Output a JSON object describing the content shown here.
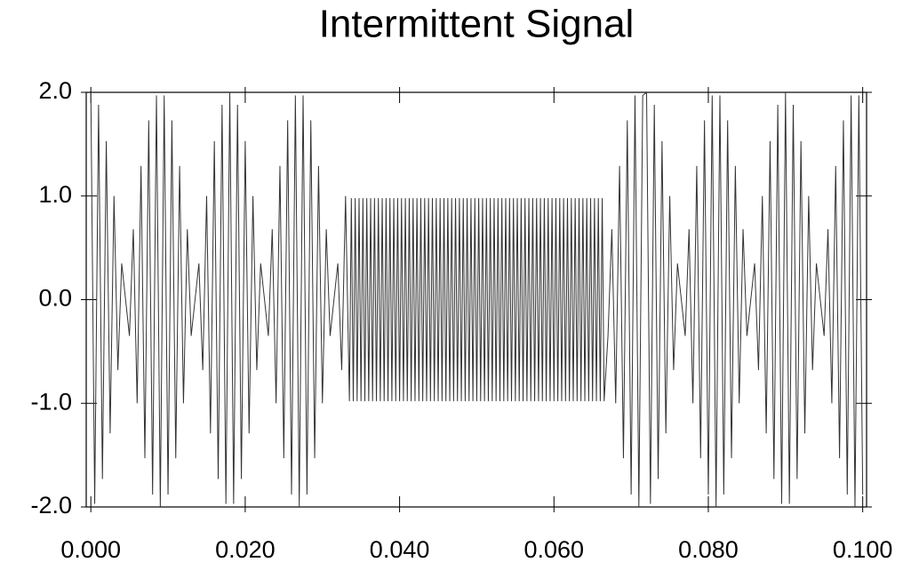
{
  "chart_data": {
    "type": "line",
    "title": "Intermittent Signal",
    "x": [
      0,
      0.0005,
      0.001,
      0.0015,
      0.002,
      0.0025,
      0.003,
      0.0035,
      0.004,
      0.0045,
      0.005,
      0.0055,
      0.006,
      0.0065,
      0.007,
      0.0075,
      0.008,
      0.0085,
      0.009,
      0.0095,
      0.01,
      0.0105,
      0.011,
      0.0115,
      0.012,
      0.0125,
      0.013,
      0.0135,
      0.014,
      0.0145,
      0.015,
      0.0155,
      0.016,
      0.0165,
      0.017,
      0.0175,
      0.018,
      0.0185,
      0.019,
      0.0195,
      0.02,
      0.0205,
      0.021,
      0.0215,
      0.022,
      0.0225,
      0.023,
      0.0235,
      0.024,
      0.0245,
      0.025,
      0.0255,
      0.026,
      0.0265,
      0.027,
      0.0275,
      0.028,
      0.0285,
      0.029,
      0.0295,
      0.03,
      0.0305,
      0.031,
      0.0315,
      0.032,
      0.0325,
      0.033,
      0.0335,
      0.03375,
      0.034,
      0.03425,
      0.0345,
      0.03475,
      0.035,
      0.03525,
      0.0355,
      0.03575,
      0.036,
      0.03625,
      0.0365,
      0.03675,
      0.037,
      0.03725,
      0.0375,
      0.03775,
      0.038,
      0.03825,
      0.0385,
      0.03875,
      0.039,
      0.03925,
      0.0395,
      0.03975,
      0.04,
      0.04025,
      0.0405,
      0.04075,
      0.041,
      0.04125,
      0.0415,
      0.04175,
      0.042,
      0.04225,
      0.0425,
      0.04275,
      0.043,
      0.04325,
      0.0435,
      0.04375,
      0.044,
      0.04425,
      0.0445,
      0.04475,
      0.045,
      0.04525,
      0.0455,
      0.04575,
      0.046,
      0.04625,
      0.0465,
      0.04675,
      0.047,
      0.04725,
      0.0475,
      0.04775,
      0.048,
      0.04825,
      0.0485,
      0.04875,
      0.049,
      0.04925,
      0.0495,
      0.04975,
      0.05,
      0.05025,
      0.0505,
      0.05075,
      0.051,
      0.05125,
      0.0515,
      0.05175,
      0.052,
      0.05225,
      0.0525,
      0.05275,
      0.053,
      0.05325,
      0.0535,
      0.05375,
      0.054,
      0.05425,
      0.0545,
      0.05475,
      0.055,
      0.05525,
      0.0555,
      0.05575,
      0.056,
      0.05625,
      0.0565,
      0.05675,
      0.057,
      0.05725,
      0.0575,
      0.05775,
      0.058,
      0.05825,
      0.0585,
      0.05875,
      0.059,
      0.05925,
      0.0595,
      0.05975,
      0.06,
      0.06025,
      0.0605,
      0.06075,
      0.061,
      0.06125,
      0.0615,
      0.06175,
      0.062,
      0.06225,
      0.0625,
      0.06275,
      0.063,
      0.06325,
      0.0635,
      0.06375,
      0.064,
      0.06425,
      0.0645,
      0.06475,
      0.065,
      0.06525,
      0.0655,
      0.06575,
      0.066,
      0.06625,
      0.0665,
      0.067,
      0.0675,
      0.068,
      0.0685,
      0.069,
      0.0695,
      0.07,
      0.0705,
      0.071,
      0.0715,
      0.072,
      0.0725,
      0.073,
      0.0735,
      0.074,
      0.0745,
      0.075,
      0.0755,
      0.076,
      0.0765,
      0.077,
      0.0775,
      0.078,
      0.0785,
      0.079,
      0.0795,
      0.08,
      0.0805,
      0.081,
      0.0815,
      0.082,
      0.0825,
      0.083,
      0.0835,
      0.084,
      0.0845,
      0.085,
      0.0855,
      0.086,
      0.0865,
      0.087,
      0.0875,
      0.088,
      0.0885,
      0.089,
      0.0895,
      0.09,
      0.0905,
      0.091,
      0.0915,
      0.092,
      0.0925,
      0.093,
      0.0935,
      0.094,
      0.0945,
      0.095,
      0.0955,
      0.096,
      0.0965,
      0.097,
      0.0975,
      0.098,
      0.0985,
      0.099,
      0.0995,
      0.1
    ],
    "series": [
      {
        "color": "#333333",
        "values": [
          2,
          -1.97,
          1.88,
          -1.73,
          1.53,
          -1.29,
          1,
          -0.68,
          0.35,
          0,
          -0.35,
          0.68,
          -1,
          1.29,
          -1.53,
          1.73,
          -1.88,
          1.97,
          -2,
          1.97,
          -1.88,
          1.73,
          -1.53,
          1.29,
          -1,
          0.68,
          -0.35,
          0,
          0.35,
          -0.68,
          1,
          -1.29,
          1.53,
          -1.73,
          1.88,
          -1.97,
          2,
          -1.97,
          1.88,
          -1.73,
          1.53,
          -1.29,
          1,
          -0.68,
          0.35,
          0,
          -0.35,
          0.68,
          -1,
          1.29,
          -1.53,
          1.73,
          -1.88,
          1.97,
          -2,
          1.97,
          -1.88,
          1.73,
          -1.53,
          1.29,
          -1,
          0.68,
          -0.35,
          0,
          0.35,
          -0.68,
          1,
          -0.98,
          0.98,
          -0.98,
          0.98,
          -0.98,
          0.98,
          -0.98,
          0.98,
          -0.98,
          0.98,
          -0.98,
          0.98,
          -0.98,
          0.98,
          -0.98,
          0.98,
          -0.98,
          0.98,
          -0.98,
          0.98,
          -0.98,
          0.98,
          -0.98,
          0.98,
          -0.98,
          0.98,
          -0.98,
          0.98,
          -0.98,
          0.98,
          -0.98,
          0.98,
          -0.98,
          0.98,
          -0.98,
          0.98,
          -0.98,
          0.98,
          -0.98,
          0.98,
          -0.98,
          0.98,
          -0.98,
          0.98,
          -0.98,
          0.98,
          -0.98,
          0.98,
          -0.98,
          0.98,
          -0.98,
          0.98,
          -0.98,
          0.98,
          -0.98,
          0.98,
          -0.98,
          0.98,
          -0.98,
          0.98,
          -0.98,
          0.98,
          -0.98,
          0.98,
          -0.98,
          0.98,
          -0.98,
          0.98,
          -0.98,
          0.98,
          -0.98,
          0.98,
          -0.98,
          0.98,
          -0.98,
          0.98,
          -0.98,
          0.98,
          -0.98,
          0.98,
          -0.98,
          0.98,
          -0.98,
          0.98,
          -0.98,
          0.98,
          -0.98,
          0.98,
          -0.98,
          0.98,
          -0.98,
          0.98,
          -0.98,
          0.98,
          -0.98,
          0.98,
          -0.98,
          0.98,
          -0.98,
          0.98,
          -0.98,
          0.98,
          -0.98,
          0.98,
          -0.98,
          0.98,
          -0.98,
          0.98,
          -0.98,
          0.98,
          -0.98,
          0.98,
          -0.98,
          0.98,
          -0.98,
          0.98,
          -0.98,
          0.98,
          -0.98,
          0.98,
          -0.98,
          0.98,
          -0.98,
          0.98,
          -0.98,
          0.98,
          -0.98,
          0.98,
          -0.98,
          0.98,
          -0.98,
          0.98,
          -0.98,
          -0.35,
          0.68,
          -1,
          1.29,
          -1.53,
          1.73,
          -1.88,
          1.97,
          -2,
          1.97,
          2,
          -1.97,
          1.88,
          -1.73,
          1.53,
          -1.29,
          1,
          -0.68,
          0.35,
          0,
          -0.35,
          0.68,
          -1,
          1.29,
          -1.53,
          1.73,
          -1.88,
          1.97,
          -2,
          1.97,
          -1.88,
          1.73,
          -1.53,
          1.29,
          -1,
          0.68,
          -0.35,
          0,
          0.35,
          -0.68,
          1,
          -1.29,
          1.53,
          -1.73,
          1.88,
          -1.97,
          2,
          -1.97,
          1.88,
          -1.73,
          1.53,
          -1.29,
          1,
          -0.68,
          0.35,
          0,
          -0.35,
          0.68,
          -1,
          1.29,
          -1.53,
          1.73,
          -1.88,
          1.97,
          -2,
          1.97,
          -1.88
        ]
      }
    ],
    "xlim": [
      -0.0006,
      0.1005
    ],
    "ylim": [
      -2,
      2
    ],
    "xticks": [
      {
        "value": 0,
        "label": "0.000"
      },
      {
        "value": 0.02,
        "label": "0.020"
      },
      {
        "value": 0.04,
        "label": "0.040"
      },
      {
        "value": 0.06,
        "label": "0.060"
      },
      {
        "value": 0.08,
        "label": "0.080"
      },
      {
        "value": 0.1,
        "label": "0.100"
      }
    ],
    "yticks": [
      {
        "value": 2,
        "label": "2.0"
      },
      {
        "value": 1,
        "label": "1.0"
      },
      {
        "value": 0,
        "label": "0.0"
      },
      {
        "value": -1,
        "label": "-1.0"
      },
      {
        "value": -2,
        "label": "-2.0"
      }
    ]
  }
}
